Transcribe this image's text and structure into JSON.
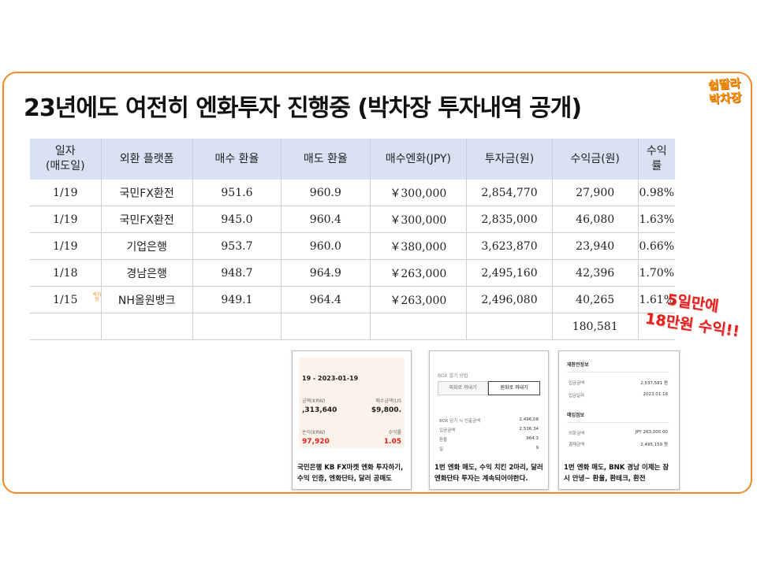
{
  "title": "23년에도 여전히 엔화투자 진행중 (박차장 투자내역 공개)",
  "logo": {
    "line1": "쉽딸라",
    "line2": "박차장"
  },
  "table": {
    "headers": [
      "일자\n(매도일)",
      "외환 플랫폼",
      "매수 환율",
      "매도 환율",
      "매수엔화(JPY)",
      "투자금(원)",
      "수익금(원)",
      "수익률"
    ],
    "rows": [
      [
        "1/19",
        "국민FX환전",
        "951.6",
        "960.9",
        "￥300,000",
        "2,854,770",
        "27,900",
        "0.98%"
      ],
      [
        "1/19",
        "국민FX환전",
        "945.0",
        "960.4",
        "￥300,000",
        "2,835,000",
        "46,080",
        "1.63%"
      ],
      [
        "1/19",
        "기업은행",
        "953.7",
        "960.0",
        "￥380,000",
        "3,623,870",
        "23,940",
        "0.66%"
      ],
      [
        "1/18",
        "경남은행",
        "948.7",
        "964.9",
        "￥263,000",
        "2,495,160",
        "42,396",
        "1.70%"
      ],
      [
        "1/15",
        "NH올원뱅크",
        "949.1",
        "964.4",
        "￥263,000",
        "2,496,080",
        "40,265",
        "1.61%"
      ],
      [
        "",
        "",
        "",
        "",
        "",
        "",
        "180,581",
        ""
      ]
    ]
  },
  "tiny_note": "박차장",
  "callout": {
    "line1": "5일만에",
    "line2": "18만원 수익!!"
  },
  "cards": [
    {
      "date": "19 - 2023-01-19",
      "label_a": "금액(KRW)",
      "label_b": "매수금액(US",
      "value_a": ",313,640",
      "value_b": "$9,800.",
      "label_c": "손익(KRW)",
      "label_d": "수익률",
      "value_c": "97,920",
      "value_d": "1.05",
      "caption": "국민은행 KB FX마켓 엔화 투자하기, 수익 인증, 엔화단타, 달러 공매도"
    },
    {
      "header": "BOX 열기 방법",
      "btn_a": "외화로 꺼내기",
      "btn_b": "원화로 꺼내기",
      "rows": [
        [
          "BOX 담기 시 인출금액",
          "2,496,08"
        ],
        [
          "입금금액",
          "2,536,34"
        ],
        [
          "환율",
          "964.3"
        ],
        [
          "일",
          "9"
        ]
      ],
      "caption": "1번 엔화 매도, 수익 치킨 2마리, 달러 엔화단타 투자는 계속되어야한다."
    },
    {
      "sec_a": "재환전정보",
      "rows_a": [
        [
          "입금금액",
          "2,537,581 원"
        ],
        [
          "입금일자",
          "2023.01.16"
        ]
      ],
      "sec_b": "매입정보",
      "rows_b": [
        [
          "외화금액",
          "JPY 263,000.00"
        ],
        [
          "결제금액",
          "2,495,159 원"
        ]
      ],
      "caption": "1번 엔화 매도, BNK 경남 이제는 잠시 안녕~ 환율, 환테크, 환전"
    }
  ],
  "colors": {
    "frame": "#f08a24",
    "header_bg": "#d9e2f3",
    "callout": "#e4201e"
  }
}
